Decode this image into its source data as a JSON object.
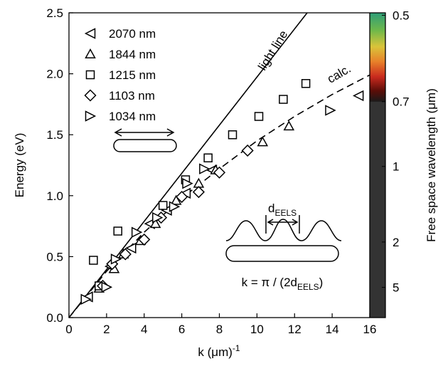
{
  "chart_data": {
    "type": "scatter",
    "xlabel": "k (μm)",
    "xlabel_sup": "-1",
    "ylabel": "Energy (eV)",
    "y2label": "Free space wavelength (μm)",
    "xlim": [
      0,
      16
    ],
    "xticks": [
      0,
      2,
      4,
      6,
      8,
      10,
      12,
      14,
      16
    ],
    "ylim": [
      0,
      2.5
    ],
    "yticks": [
      {
        "value": 0,
        "label": "0.0"
      },
      0.5,
      {
        "value": 1,
        "label": "1.0"
      },
      1.5,
      {
        "value": 2,
        "label": "2.0"
      },
      2.5
    ],
    "y2ticks": [
      0.5,
      0.7,
      1,
      2,
      5
    ],
    "y2_scale": "reciprocal",
    "y2_constant": 1.24,
    "color": "#000000",
    "series": [
      {
        "name": "2070 nm",
        "marker": "triangle-left",
        "x": [
          1.0,
          2.2,
          3.3,
          4.3,
          5.2,
          6.2,
          7.6,
          15.4
        ],
        "values": [
          0.17,
          0.42,
          0.57,
          0.77,
          0.88,
          1.02,
          1.21,
          1.82
        ]
      },
      {
        "name": "1844 nm",
        "marker": "triangle-up",
        "x": [
          1.6,
          2.4,
          2.9,
          3.8,
          4.6,
          5.7,
          6.9,
          7.8,
          10.3,
          11.7
        ],
        "values": [
          0.24,
          0.4,
          0.52,
          0.63,
          0.77,
          0.96,
          1.1,
          1.21,
          1.44,
          1.57
        ]
      },
      {
        "name": "1215 nm",
        "marker": "square",
        "x": [
          1.6,
          1.3,
          2.6,
          5.0,
          6.2,
          7.4,
          8.7,
          10.1,
          11.4,
          12.6
        ],
        "values": [
          0.26,
          0.47,
          0.71,
          0.92,
          1.13,
          1.31,
          1.5,
          1.65,
          1.79,
          1.92
        ]
      },
      {
        "name": "1103 nm",
        "marker": "diamond",
        "x": [
          1.8,
          2.3,
          3.0,
          4.0,
          4.9,
          6.0,
          6.9,
          8.0,
          9.5
        ],
        "values": [
          0.26,
          0.44,
          0.52,
          0.64,
          0.82,
          0.99,
          1.03,
          1.19,
          1.37
        ]
      },
      {
        "name": "1034 nm",
        "marker": "triangle-right",
        "x": [
          0.9,
          2.0,
          2.5,
          3.6,
          4.7,
          5.6,
          6.3,
          7.2,
          13.9
        ],
        "values": [
          0.15,
          0.25,
          0.48,
          0.7,
          0.82,
          0.91,
          1.1,
          1.22,
          1.7
        ]
      }
    ],
    "lines": [
      {
        "name": "light line",
        "dash": false,
        "x": [
          0,
          12.67
        ],
        "values": [
          0,
          2.5
        ]
      },
      {
        "name": "calc.",
        "dash": true,
        "x": [
          0,
          2,
          4,
          6,
          8,
          10,
          12,
          14,
          16
        ],
        "values": [
          0,
          0.38,
          0.7,
          0.98,
          1.22,
          1.45,
          1.65,
          1.83,
          1.99
        ]
      }
    ],
    "inset_label": {
      "main": "d",
      "sub": "EELS"
    },
    "inset_formula": [
      "k = π / (2d",
      "EELS",
      ")"
    ]
  }
}
